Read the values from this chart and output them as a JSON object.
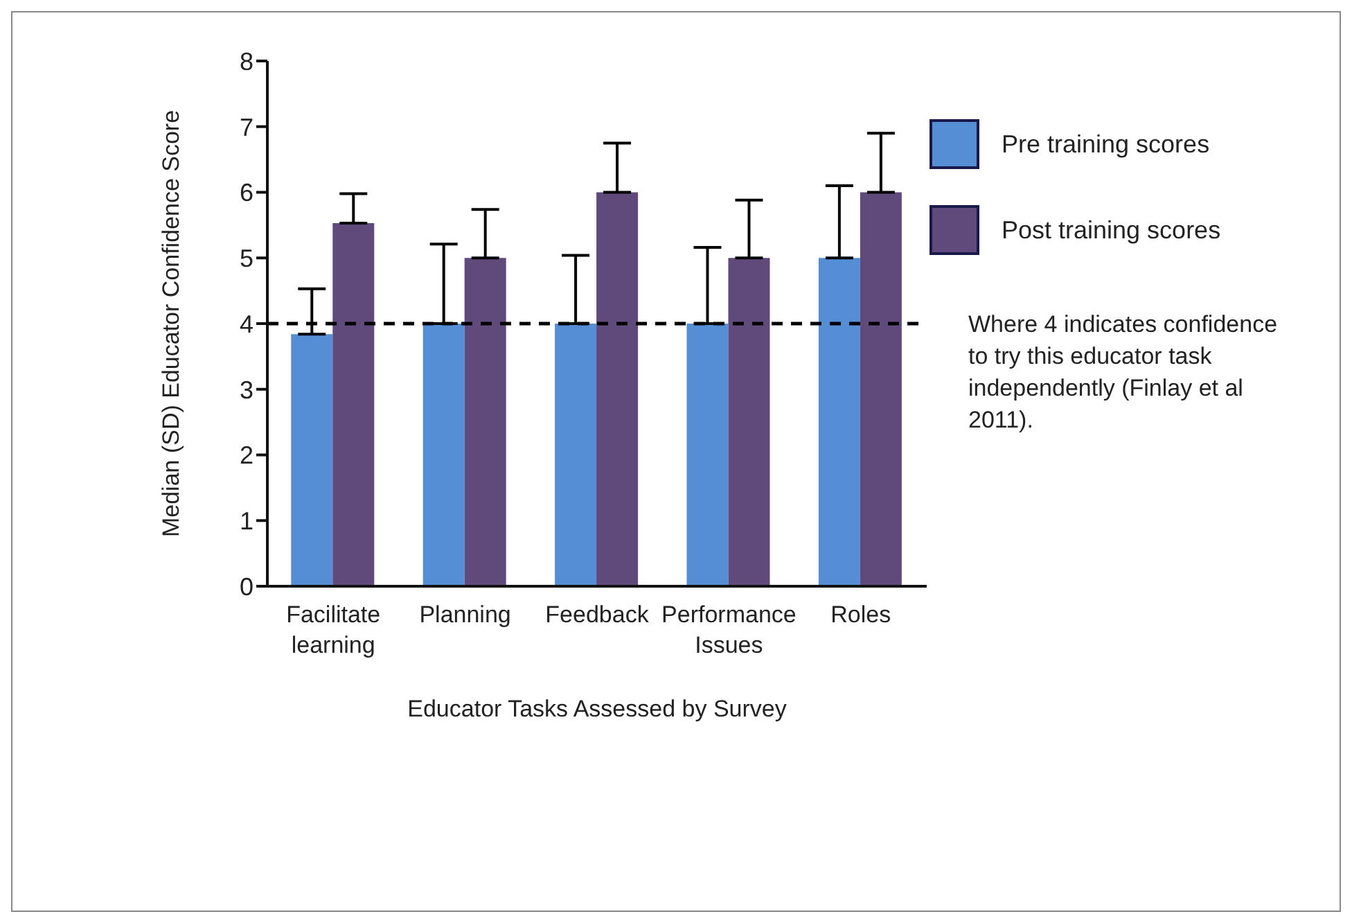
{
  "chart_data": {
    "type": "bar",
    "xlabel": "Educator Tasks Assessed by Survey",
    "ylabel": "Median (SD) Educator Confidence Score",
    "categories": [
      "Facilitate learning",
      "Planning",
      "Feedback",
      "Performance Issues",
      "Roles"
    ],
    "series": [
      {
        "name": "Pre training scores",
        "color": "#558ed5",
        "values": [
          3.84,
          4,
          4,
          4,
          5
        ],
        "errors": [
          [
            3.84,
            4.53
          ],
          [
            4,
            5.21
          ],
          [
            4,
            5.04
          ],
          [
            4,
            5.16
          ],
          [
            5,
            6.1
          ]
        ]
      },
      {
        "name": "Post training scores",
        "color": "#604a7b",
        "values": [
          5.53,
          5,
          6,
          5,
          6
        ],
        "errors": [
          [
            5.53,
            5.98
          ],
          [
            5,
            5.74
          ],
          [
            6,
            6.75
          ],
          [
            5,
            5.88
          ],
          [
            6,
            6.9
          ]
        ]
      }
    ],
    "ylim": [
      0,
      8
    ],
    "yticks": [
      0,
      1,
      2,
      3,
      4,
      5,
      6,
      7,
      8
    ],
    "grid": false,
    "legend": "top right",
    "ref_lines": [
      {
        "axis": "y",
        "value": 4,
        "label": "Where 4 indicates confidence to try this educator task independently (Finlay et al 2011).",
        "color": "#000000",
        "line_style": "dashed"
      }
    ]
  }
}
